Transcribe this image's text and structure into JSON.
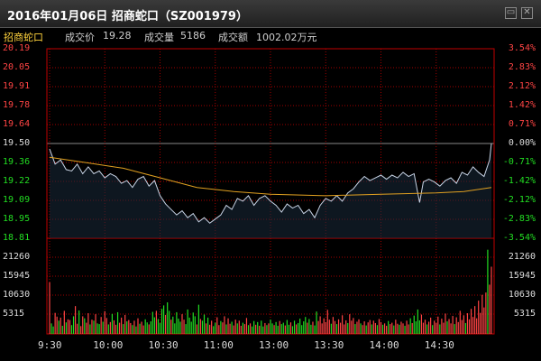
{
  "window": {
    "title": "2016年01月06日 招商蛇口（SZ001979）",
    "buttons": [
      "▭",
      "✕"
    ]
  },
  "info": {
    "stock_name": "招商蛇口",
    "price_label": "成交价",
    "price_value": "19.28",
    "volume_label": "成交量",
    "volume_value": "5186",
    "amount_label": "成交额",
    "amount_value": "1002.02万元"
  },
  "colors": {
    "up": "#ff4444",
    "down": "#22dd22",
    "neutral": "#dddddd",
    "price_line": "#c8d4e6",
    "avg_line": "#e0a020",
    "grid": "#a00000"
  },
  "chart_data": {
    "type": "line",
    "price_axis": {
      "ticks": [
        "20.19",
        "20.05",
        "19.91",
        "19.78",
        "19.64",
        "19.50",
        "19.36",
        "19.22",
        "19.09",
        "18.95",
        "18.81"
      ],
      "pct_ticks": [
        "3.54%",
        "2.83%",
        "2.12%",
        "1.42%",
        "0.71%",
        "0.00%",
        "-0.71%",
        "-1.42%",
        "-2.12%",
        "-2.83%",
        "-3.54%"
      ],
      "prev_close": 19.5,
      "ylim": [
        18.81,
        20.19
      ]
    },
    "volume_axis": {
      "ticks": [
        "21260",
        "15945",
        "10630",
        "5315"
      ],
      "ylim": [
        0,
        26575
      ]
    },
    "time_labels": [
      "9:30",
      "10:00",
      "10:30",
      "11:00",
      "13:00",
      "13:30",
      "14:00",
      "14:30"
    ],
    "price": [
      [
        0,
        19.46
      ],
      [
        3,
        19.35
      ],
      [
        6,
        19.38
      ],
      [
        9,
        19.31
      ],
      [
        12,
        19.3
      ],
      [
        15,
        19.35
      ],
      [
        18,
        19.28
      ],
      [
        21,
        19.33
      ],
      [
        24,
        19.28
      ],
      [
        27,
        19.3
      ],
      [
        30,
        19.25
      ],
      [
        33,
        19.28
      ],
      [
        36,
        19.26
      ],
      [
        39,
        19.21
      ],
      [
        42,
        19.23
      ],
      [
        45,
        19.18
      ],
      [
        48,
        19.24
      ],
      [
        51,
        19.26
      ],
      [
        54,
        19.19
      ],
      [
        57,
        19.23
      ],
      [
        60,
        19.12
      ],
      [
        63,
        19.06
      ],
      [
        66,
        19.02
      ],
      [
        69,
        18.98
      ],
      [
        72,
        19.01
      ],
      [
        75,
        18.96
      ],
      [
        78,
        18.99
      ],
      [
        81,
        18.93
      ],
      [
        84,
        18.96
      ],
      [
        87,
        18.92
      ],
      [
        90,
        18.95
      ],
      [
        93,
        18.98
      ],
      [
        96,
        19.05
      ],
      [
        99,
        19.02
      ],
      [
        102,
        19.1
      ],
      [
        105,
        19.08
      ],
      [
        108,
        19.12
      ],
      [
        111,
        19.05
      ],
      [
        114,
        19.1
      ],
      [
        117,
        19.12
      ],
      [
        120,
        19.08
      ],
      [
        123,
        19.05
      ],
      [
        126,
        19.0
      ],
      [
        129,
        19.06
      ],
      [
        132,
        19.03
      ],
      [
        135,
        19.05
      ],
      [
        138,
        18.99
      ],
      [
        141,
        19.02
      ],
      [
        144,
        18.96
      ],
      [
        147,
        19.05
      ],
      [
        150,
        19.1
      ],
      [
        153,
        19.08
      ],
      [
        156,
        19.12
      ],
      [
        159,
        19.08
      ],
      [
        162,
        19.14
      ],
      [
        165,
        19.17
      ],
      [
        168,
        19.22
      ],
      [
        171,
        19.26
      ],
      [
        174,
        19.23
      ],
      [
        177,
        19.25
      ],
      [
        180,
        19.27
      ],
      [
        183,
        19.24
      ],
      [
        186,
        19.27
      ],
      [
        189,
        19.25
      ],
      [
        192,
        19.29
      ],
      [
        195,
        19.26
      ],
      [
        198,
        19.28
      ],
      [
        201,
        19.07
      ],
      [
        203,
        19.22
      ],
      [
        206,
        19.24
      ],
      [
        209,
        19.22
      ],
      [
        212,
        19.19
      ],
      [
        215,
        19.23
      ],
      [
        218,
        19.25
      ],
      [
        221,
        19.21
      ],
      [
        224,
        19.29
      ],
      [
        227,
        19.27
      ],
      [
        230,
        19.33
      ],
      [
        233,
        19.29
      ],
      [
        236,
        19.26
      ],
      [
        239,
        19.38
      ],
      [
        240,
        19.5
      ]
    ],
    "avg_price": [
      [
        0,
        19.4
      ],
      [
        20,
        19.36
      ],
      [
        40,
        19.32
      ],
      [
        60,
        19.25
      ],
      [
        80,
        19.18
      ],
      [
        100,
        19.15
      ],
      [
        120,
        19.13
      ],
      [
        150,
        19.12
      ],
      [
        180,
        19.13
      ],
      [
        210,
        19.14
      ],
      [
        225,
        19.15
      ],
      [
        240,
        19.18
      ]
    ],
    "volume": [
      [
        0,
        15200,
        "up"
      ],
      [
        1,
        3100,
        "down"
      ],
      [
        2,
        2200,
        "down"
      ],
      [
        3,
        6200,
        "up"
      ],
      [
        4,
        5100,
        "up"
      ],
      [
        5,
        3900,
        "down"
      ],
      [
        6,
        4800,
        "up"
      ],
      [
        7,
        2400,
        "down"
      ],
      [
        8,
        6800,
        "up"
      ],
      [
        9,
        3400,
        "down"
      ],
      [
        10,
        4300,
        "up"
      ],
      [
        11,
        4100,
        "up"
      ],
      [
        12,
        2600,
        "down"
      ],
      [
        13,
        5200,
        "down"
      ],
      [
        14,
        8200,
        "up"
      ],
      [
        15,
        3000,
        "up"
      ],
      [
        16,
        6900,
        "down"
      ],
      [
        17,
        2300,
        "up"
      ],
      [
        18,
        5200,
        "up"
      ],
      [
        19,
        4600,
        "down"
      ],
      [
        20,
        3300,
        "up"
      ],
      [
        21,
        6100,
        "up"
      ],
      [
        22,
        2800,
        "down"
      ],
      [
        23,
        4200,
        "up"
      ],
      [
        24,
        3900,
        "down"
      ],
      [
        25,
        5800,
        "up"
      ],
      [
        26,
        3100,
        "down"
      ],
      [
        27,
        2900,
        "down"
      ],
      [
        28,
        5000,
        "up"
      ],
      [
        29,
        3600,
        "down"
      ],
      [
        30,
        6700,
        "up"
      ],
      [
        31,
        4700,
        "up"
      ],
      [
        32,
        2800,
        "down"
      ],
      [
        33,
        3500,
        "up"
      ],
      [
        34,
        5900,
        "down"
      ],
      [
        35,
        4000,
        "up"
      ],
      [
        36,
        2700,
        "up"
      ],
      [
        37,
        6400,
        "down"
      ],
      [
        38,
        3300,
        "up"
      ],
      [
        39,
        4800,
        "up"
      ],
      [
        40,
        2900,
        "down"
      ],
      [
        41,
        5600,
        "up"
      ],
      [
        42,
        3700,
        "down"
      ],
      [
        43,
        4100,
        "up"
      ],
      [
        44,
        3200,
        "up"
      ],
      [
        45,
        2600,
        "down"
      ],
      [
        46,
        3900,
        "up"
      ],
      [
        47,
        2200,
        "down"
      ],
      [
        48,
        4600,
        "up"
      ],
      [
        49,
        3000,
        "down"
      ],
      [
        50,
        3600,
        "up"
      ],
      [
        51,
        2500,
        "up"
      ],
      [
        52,
        4300,
        "down"
      ],
      [
        53,
        3400,
        "down"
      ],
      [
        54,
        2800,
        "up"
      ],
      [
        55,
        3700,
        "down"
      ],
      [
        56,
        6500,
        "down"
      ],
      [
        57,
        4900,
        "down"
      ],
      [
        58,
        6800,
        "up"
      ],
      [
        59,
        4400,
        "down"
      ],
      [
        60,
        3200,
        "down"
      ],
      [
        61,
        7400,
        "down"
      ],
      [
        62,
        8400,
        "down"
      ],
      [
        63,
        5600,
        "up"
      ],
      [
        64,
        9300,
        "down"
      ],
      [
        65,
        6800,
        "down"
      ],
      [
        66,
        4200,
        "up"
      ],
      [
        67,
        5100,
        "down"
      ],
      [
        68,
        3100,
        "down"
      ],
      [
        69,
        6400,
        "down"
      ],
      [
        70,
        4500,
        "down"
      ],
      [
        71,
        3600,
        "down"
      ],
      [
        72,
        5800,
        "up"
      ],
      [
        73,
        4200,
        "up"
      ],
      [
        74,
        2900,
        "down"
      ],
      [
        75,
        7200,
        "down"
      ],
      [
        76,
        4800,
        "down"
      ],
      [
        77,
        3600,
        "down"
      ],
      [
        78,
        6300,
        "down"
      ],
      [
        79,
        5200,
        "down"
      ],
      [
        80,
        2800,
        "up"
      ],
      [
        81,
        8600,
        "down"
      ],
      [
        82,
        4400,
        "up"
      ],
      [
        83,
        3900,
        "down"
      ],
      [
        84,
        5700,
        "down"
      ],
      [
        85,
        3100,
        "up"
      ],
      [
        86,
        4800,
        "down"
      ],
      [
        87,
        2700,
        "up"
      ],
      [
        88,
        3900,
        "up"
      ],
      [
        89,
        2300,
        "down"
      ],
      [
        90,
        3300,
        "down"
      ],
      [
        91,
        4900,
        "up"
      ],
      [
        92,
        2600,
        "up"
      ],
      [
        93,
        3800,
        "down"
      ],
      [
        94,
        3400,
        "up"
      ],
      [
        95,
        5200,
        "up"
      ],
      [
        96,
        2800,
        "down"
      ],
      [
        97,
        4600,
        "up"
      ],
      [
        98,
        3000,
        "up"
      ],
      [
        99,
        3600,
        "down"
      ],
      [
        100,
        2500,
        "up"
      ],
      [
        101,
        4200,
        "up"
      ],
      [
        102,
        3100,
        "down"
      ],
      [
        103,
        3900,
        "up"
      ],
      [
        104,
        2400,
        "up"
      ],
      [
        105,
        3300,
        "down"
      ],
      [
        106,
        2900,
        "up"
      ],
      [
        107,
        4700,
        "up"
      ],
      [
        108,
        2600,
        "down"
      ],
      [
        109,
        3100,
        "up"
      ],
      [
        110,
        2200,
        "down"
      ],
      [
        111,
        3800,
        "down"
      ],
      [
        112,
        2700,
        "up"
      ],
      [
        113,
        3500,
        "down"
      ],
      [
        114,
        2400,
        "up"
      ],
      [
        115,
        3900,
        "down"
      ],
      [
        116,
        2200,
        "down"
      ],
      [
        117,
        3200,
        "up"
      ],
      [
        118,
        2600,
        "down"
      ],
      [
        119,
        3100,
        "up"
      ],
      [
        120,
        4200,
        "down"
      ],
      [
        121,
        3100,
        "down"
      ],
      [
        122,
        2600,
        "up"
      ],
      [
        123,
        3500,
        "down"
      ],
      [
        124,
        2400,
        "down"
      ],
      [
        125,
        3800,
        "up"
      ],
      [
        126,
        2900,
        "down"
      ],
      [
        127,
        3300,
        "down"
      ],
      [
        128,
        2500,
        "up"
      ],
      [
        129,
        4100,
        "down"
      ],
      [
        130,
        2700,
        "down"
      ],
      [
        131,
        3400,
        "up"
      ],
      [
        132,
        2300,
        "down"
      ],
      [
        133,
        3900,
        "down"
      ],
      [
        134,
        2800,
        "up"
      ],
      [
        135,
        3200,
        "down"
      ],
      [
        136,
        4500,
        "down"
      ],
      [
        137,
        2600,
        "down"
      ],
      [
        138,
        3700,
        "down"
      ],
      [
        139,
        5000,
        "down"
      ],
      [
        140,
        3300,
        "up"
      ],
      [
        141,
        4400,
        "down"
      ],
      [
        142,
        2700,
        "down"
      ],
      [
        143,
        3600,
        "up"
      ],
      [
        144,
        2500,
        "down"
      ],
      [
        145,
        6600,
        "down"
      ],
      [
        146,
        3800,
        "up"
      ],
      [
        147,
        5200,
        "up"
      ],
      [
        148,
        3100,
        "up"
      ],
      [
        149,
        4600,
        "up"
      ],
      [
        150,
        3500,
        "up"
      ],
      [
        151,
        7100,
        "up"
      ],
      [
        152,
        4200,
        "up"
      ],
      [
        153,
        3000,
        "down"
      ],
      [
        154,
        5000,
        "up"
      ],
      [
        155,
        3800,
        "up"
      ],
      [
        156,
        2900,
        "down"
      ],
      [
        157,
        4300,
        "up"
      ],
      [
        158,
        3300,
        "up"
      ],
      [
        159,
        5500,
        "up"
      ],
      [
        160,
        2800,
        "up"
      ],
      [
        161,
        4000,
        "up"
      ],
      [
        162,
        3200,
        "down"
      ],
      [
        163,
        5800,
        "up"
      ],
      [
        164,
        3900,
        "up"
      ],
      [
        165,
        4700,
        "up"
      ],
      [
        166,
        2900,
        "down"
      ],
      [
        167,
        3600,
        "up"
      ],
      [
        168,
        4300,
        "up"
      ],
      [
        169,
        3100,
        "down"
      ],
      [
        170,
        2600,
        "up"
      ],
      [
        171,
        3700,
        "up"
      ],
      [
        172,
        2500,
        "down"
      ],
      [
        173,
        3400,
        "up"
      ],
      [
        174,
        4100,
        "up"
      ],
      [
        175,
        2800,
        "down"
      ],
      [
        176,
        3900,
        "up"
      ],
      [
        177,
        3200,
        "up"
      ],
      [
        178,
        2600,
        "down"
      ],
      [
        179,
        4400,
        "up"
      ],
      [
        180,
        3500,
        "up"
      ],
      [
        181,
        2700,
        "down"
      ],
      [
        182,
        3100,
        "up"
      ],
      [
        183,
        2400,
        "up"
      ],
      [
        184,
        3800,
        "down"
      ],
      [
        185,
        2900,
        "up"
      ],
      [
        186,
        3300,
        "up"
      ],
      [
        187,
        2500,
        "down"
      ],
      [
        188,
        4200,
        "up"
      ],
      [
        189,
        3000,
        "up"
      ],
      [
        190,
        2700,
        "down"
      ],
      [
        191,
        3600,
        "up"
      ],
      [
        192,
        3100,
        "up"
      ],
      [
        193,
        2400,
        "down"
      ],
      [
        194,
        3900,
        "up"
      ],
      [
        195,
        2800,
        "up"
      ],
      [
        196,
        4600,
        "down"
      ],
      [
        197,
        3200,
        "up"
      ],
      [
        198,
        5400,
        "down"
      ],
      [
        199,
        3700,
        "down"
      ],
      [
        200,
        7200,
        "down"
      ],
      [
        201,
        4000,
        "down"
      ],
      [
        202,
        5700,
        "up"
      ],
      [
        203,
        3300,
        "up"
      ],
      [
        204,
        4200,
        "up"
      ],
      [
        205,
        2800,
        "down"
      ],
      [
        206,
        3600,
        "up"
      ],
      [
        207,
        4800,
        "up"
      ],
      [
        208,
        2600,
        "down"
      ],
      [
        209,
        3900,
        "up"
      ],
      [
        210,
        3200,
        "up"
      ],
      [
        211,
        5100,
        "up"
      ],
      [
        212,
        2800,
        "down"
      ],
      [
        213,
        4500,
        "up"
      ],
      [
        214,
        3300,
        "up"
      ],
      [
        215,
        6000,
        "up"
      ],
      [
        216,
        3700,
        "down"
      ],
      [
        217,
        4400,
        "up"
      ],
      [
        218,
        3100,
        "up"
      ],
      [
        219,
        5300,
        "up"
      ],
      [
        220,
        2900,
        "down"
      ],
      [
        221,
        4900,
        "up"
      ],
      [
        222,
        3500,
        "up"
      ],
      [
        223,
        6800,
        "up"
      ],
      [
        224,
        4100,
        "up"
      ],
      [
        225,
        5500,
        "up"
      ],
      [
        226,
        3200,
        "down"
      ],
      [
        227,
        6100,
        "up"
      ],
      [
        228,
        4300,
        "up"
      ],
      [
        229,
        7400,
        "up"
      ],
      [
        230,
        5000,
        "up"
      ],
      [
        231,
        8200,
        "up"
      ],
      [
        232,
        4600,
        "up"
      ],
      [
        233,
        9800,
        "up"
      ],
      [
        234,
        6200,
        "up"
      ],
      [
        235,
        11500,
        "up"
      ],
      [
        236,
        7800,
        "up"
      ],
      [
        237,
        12200,
        "up"
      ],
      [
        238,
        24800,
        "down"
      ],
      [
        239,
        14500,
        "up"
      ],
      [
        240,
        19800,
        "up"
      ]
    ]
  }
}
